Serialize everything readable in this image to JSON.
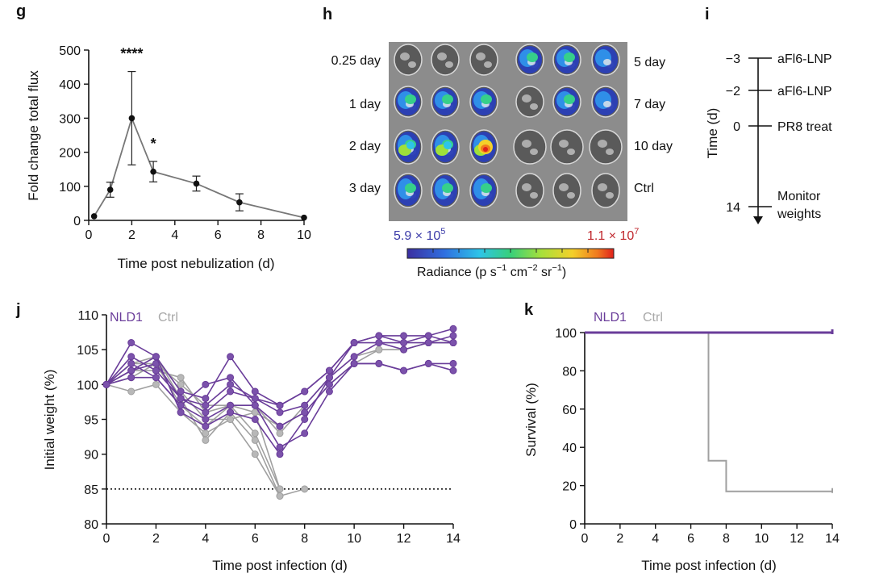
{
  "panels": {
    "g": "g",
    "h": "h",
    "i": "i",
    "j": "j",
    "k": "k"
  },
  "colors": {
    "nld1": "#6a3d9a",
    "nld1_light": "#7b52ab",
    "ctrl": "#b8b8b8",
    "ctrl_dark": "#a0a0a0",
    "axis": "#111111",
    "image_bg": "#8c8c8c"
  },
  "chart_data": [
    {
      "id": "g",
      "type": "line",
      "xlabel": "Time post nebulization (d)",
      "ylabel": "Fold  change total  flux",
      "xlim": [
        0,
        10
      ],
      "ylim": [
        0,
        500
      ],
      "xticks": [
        0,
        2,
        4,
        6,
        8,
        10
      ],
      "yticks": [
        0,
        100,
        200,
        300,
        400,
        500
      ],
      "x": [
        0.25,
        1,
        2,
        3,
        5,
        7,
        10
      ],
      "y": [
        12,
        90,
        300,
        143,
        108,
        53,
        8
      ],
      "error": [
        0,
        22,
        137,
        30,
        22,
        25,
        0
      ],
      "annotations": [
        {
          "x": 2,
          "text": "****"
        },
        {
          "x": 3,
          "text": "*"
        }
      ]
    },
    {
      "id": "h",
      "type": "image",
      "left_labels": [
        "0.25 day",
        "1 day",
        "2 day",
        "3 day"
      ],
      "right_labels": [
        "5 day",
        "7 day",
        "10 day",
        "Ctrl"
      ],
      "colorbar": {
        "min_label": "5.9 × 10",
        "min_exp": "5",
        "max_label": "1.1 × 10",
        "max_exp": "7",
        "title": "Radiance (p s",
        "title_exp1": "−1",
        "title_mid1": " cm",
        "title_exp2": "−2",
        "title_mid2": " sr",
        "title_exp3": "−1",
        "title_end": ")"
      },
      "signal": [
        [
          0,
          0,
          0,
          2,
          2,
          1
        ],
        [
          2,
          2,
          2,
          0,
          2,
          1
        ],
        [
          3,
          3,
          4,
          0,
          0,
          0
        ],
        [
          2,
          2,
          2,
          0,
          0,
          0
        ]
      ]
    },
    {
      "id": "i",
      "type": "timeline",
      "ylabel": "Time (d)",
      "events": [
        {
          "t": "−3",
          "label": "aFl6-LNP"
        },
        {
          "t": "−2",
          "label": "aFl6-LNP"
        },
        {
          "t": "0",
          "label": "PR8 treat"
        },
        {
          "t": "14",
          "label": "Monitor",
          "label2": "weights"
        }
      ]
    },
    {
      "id": "j",
      "type": "line",
      "xlabel": "Time post infection (d)",
      "ylabel": "Initial weight (%)",
      "xlim": [
        0,
        14
      ],
      "ylim": [
        80,
        110
      ],
      "xticks": [
        0,
        2,
        4,
        6,
        8,
        10,
        12,
        14
      ],
      "yticks": [
        80,
        85,
        90,
        95,
        100,
        105,
        110
      ],
      "threshold": 85,
      "legend": [
        "NLD1",
        "Ctrl"
      ],
      "nld1": [
        [
          100,
          106,
          104,
          99,
          98,
          104,
          99,
          97,
          99,
          102,
          106,
          107,
          106,
          107,
          108
        ],
        [
          100,
          104,
          102,
          98,
          97,
          100,
          98,
          96,
          97,
          101,
          104,
          106,
          105,
          106,
          107
        ],
        [
          100,
          103,
          101,
          97,
          100,
          101,
          97,
          94,
          96,
          100,
          103,
          103,
          102,
          103,
          103
        ],
        [
          100,
          102,
          103,
          98,
          96,
          99,
          98,
          97,
          99,
          102,
          106,
          106,
          106,
          106,
          106
        ],
        [
          100,
          101,
          101,
          97,
          95,
          97,
          97,
          91,
          93,
          99,
          103,
          103,
          102,
          103,
          102
        ],
        [
          100,
          102,
          104,
          96,
          94,
          96,
          95,
          90,
          95,
          101,
          106,
          107,
          107,
          107,
          106
        ]
      ],
      "ctrl": [
        [
          100,
          99,
          100,
          96,
          93,
          95,
          90,
          84,
          null,
          null,
          null,
          null,
          null,
          null,
          null
        ],
        [
          100,
          101,
          103,
          97,
          94,
          97,
          93,
          85,
          null,
          null,
          null,
          null,
          null,
          null,
          null
        ],
        [
          100,
          102,
          104,
          99,
          95,
          95,
          96,
          85,
          null,
          null,
          null,
          null,
          null,
          null,
          null
        ],
        [
          100,
          103,
          103,
          100,
          97,
          97,
          97,
          93,
          97,
          101,
          104,
          105,
          105,
          106,
          106
        ],
        [
          100,
          102,
          102,
          101,
          96,
          97,
          96,
          94,
          96,
          100,
          103,
          105,
          105,
          106,
          106
        ],
        [
          100,
          103,
          104,
          98,
          92,
          96,
          92,
          84,
          85,
          null,
          null,
          null,
          null,
          null,
          null
        ]
      ]
    },
    {
      "id": "k",
      "type": "line",
      "xlabel": "Time post infection (d)",
      "ylabel": "Survival (%)",
      "xlim": [
        0,
        14
      ],
      "ylim": [
        0,
        100
      ],
      "xticks": [
        0,
        2,
        4,
        6,
        8,
        10,
        12,
        14
      ],
      "yticks": [
        0,
        20,
        40,
        60,
        80,
        100
      ],
      "legend": [
        "NLD1",
        "Ctrl"
      ],
      "nld1": {
        "x": [
          0,
          14
        ],
        "y": [
          100,
          100
        ]
      },
      "ctrl": {
        "x": [
          0,
          7,
          7,
          8,
          8,
          14
        ],
        "y": [
          100,
          100,
          33,
          33,
          17,
          17
        ]
      }
    }
  ]
}
